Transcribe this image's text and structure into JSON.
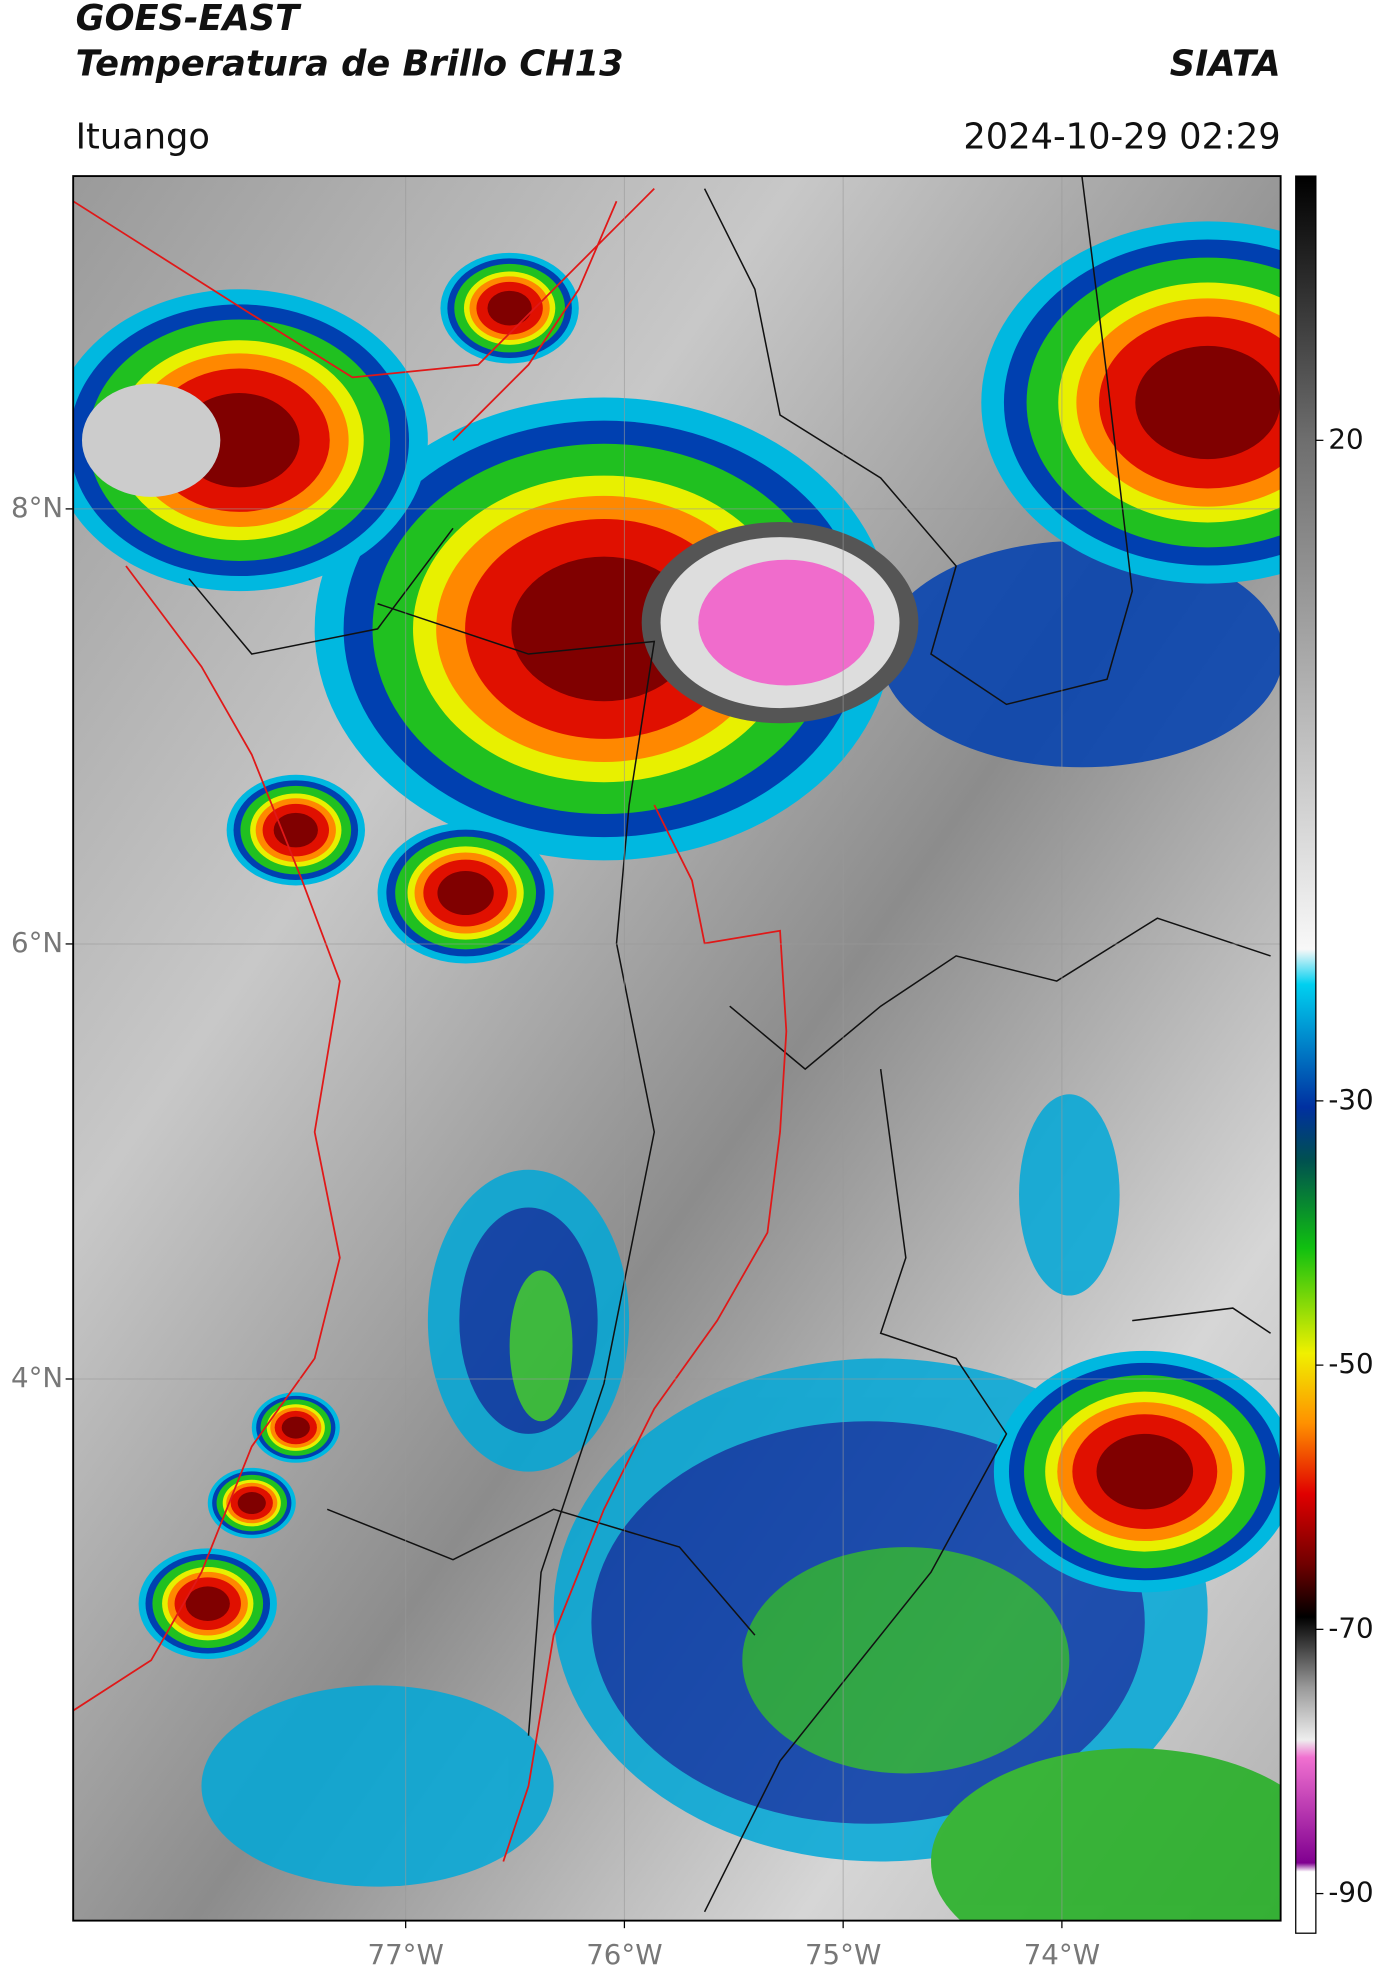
{
  "header": {
    "title": "GOES-EAST",
    "subtitle": "Temperatura de Brillo CH13",
    "brand": "SIATA",
    "location": "Ituango",
    "datetime": "2024-10-29 02:29"
  },
  "map": {
    "xlim": [
      -78.52,
      -73.0
    ],
    "ylim": [
      1.51,
      9.53
    ],
    "lat_ticks": [
      {
        "value": 8,
        "label": "8°N"
      },
      {
        "value": 6,
        "label": "6°N"
      },
      {
        "value": 4,
        "label": "4°N"
      }
    ],
    "lon_ticks": [
      {
        "value": -77,
        "label": "77°W"
      },
      {
        "value": -76,
        "label": "76°W"
      },
      {
        "value": -75,
        "label": "75°W"
      },
      {
        "value": -74,
        "label": "74°W"
      }
    ]
  },
  "colorbar": {
    "range": [
      -93,
      40
    ],
    "ticks": [
      20,
      -30,
      -50,
      -70,
      -90
    ]
  }
}
